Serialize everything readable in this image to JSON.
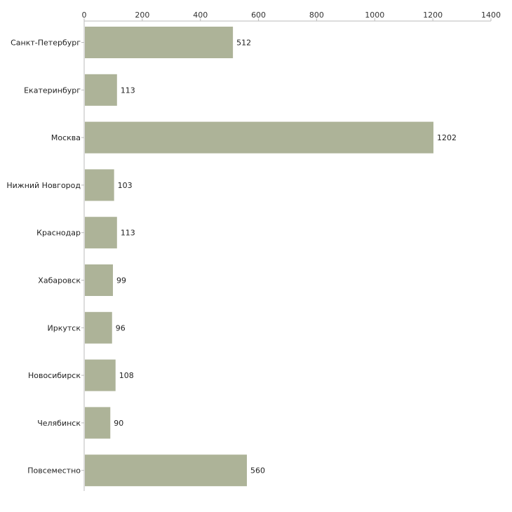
{
  "chart_data": {
    "type": "bar",
    "orientation": "horizontal",
    "title": "",
    "xlabel": "",
    "ylabel": "",
    "xlim": [
      0,
      1400
    ],
    "xticks": [
      0,
      200,
      400,
      600,
      800,
      1000,
      1200,
      1400
    ],
    "xtick_labels": [
      "0",
      "200",
      "400",
      "600",
      "800",
      "1000",
      "1200",
      "1400"
    ],
    "grid": false,
    "bar_color": "#adb398",
    "categories": [
      "Санкт-Петербург",
      "Екатеринбург",
      "Москва",
      "Нижний Новгород",
      "Краснодар",
      "Хабаровск",
      "Иркутск",
      "Новосибирск",
      "Челябинск",
      "Повсеместно"
    ],
    "values": [
      512,
      113,
      1202,
      103,
      113,
      99,
      96,
      108,
      90,
      560
    ],
    "value_labels": [
      "512",
      "113",
      "1202",
      "103",
      "113",
      "99",
      "96",
      "108",
      "90",
      "560"
    ]
  }
}
